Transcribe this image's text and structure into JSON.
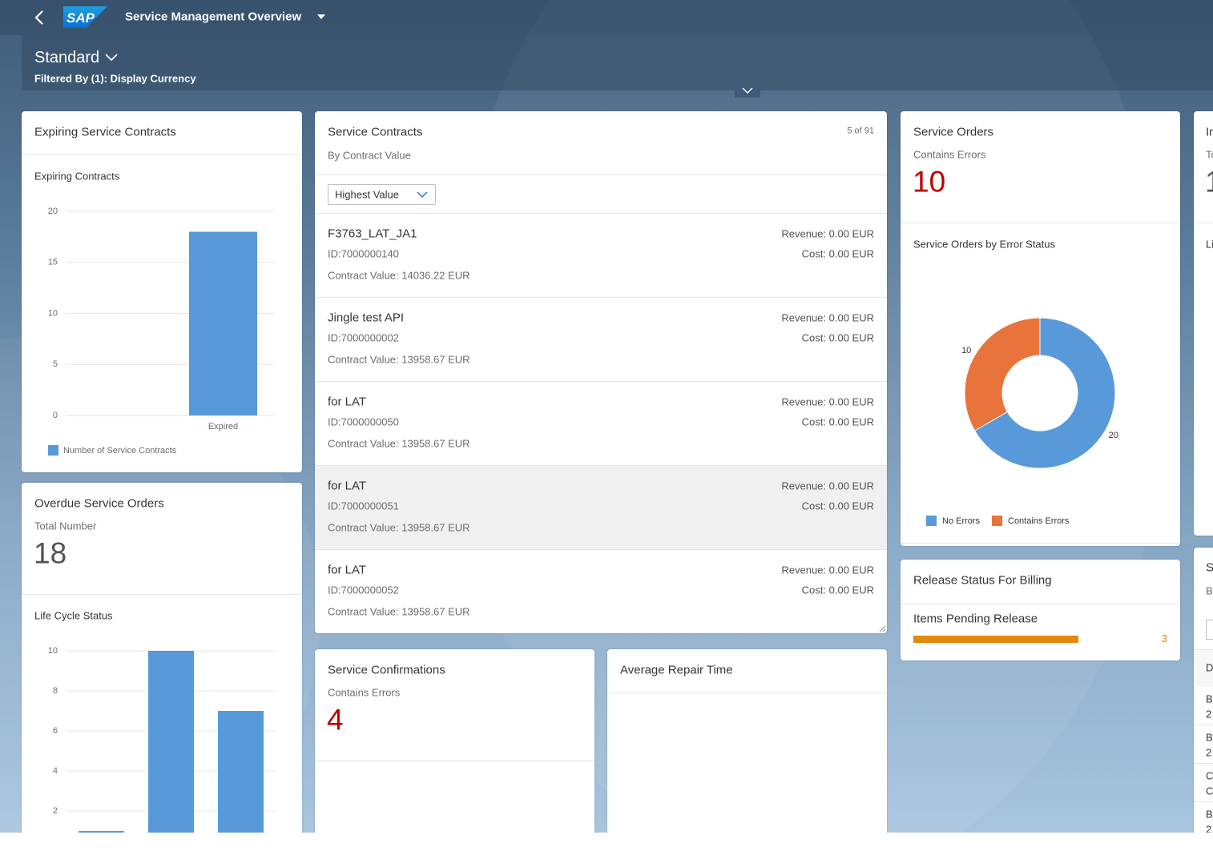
{
  "header": {
    "logo": "SAP",
    "title": "Service Management Overview",
    "variant": "Standard",
    "filter": "Filtered By (1): Display Currency"
  },
  "cards": {
    "expiring": {
      "title": "Expiring Service Contracts"
    },
    "overdue": {
      "title": "Overdue Service Orders",
      "kpi_label": "Total Number",
      "kpi_value": 18
    },
    "contracts": {
      "title": "Service Contracts",
      "subtitle": "By Contract Value",
      "count": "5 of 91",
      "sort": "Highest Value",
      "rows": [
        {
          "name": "F3763_LAT_JA1",
          "id": "ID:7000000140",
          "value": "Contract Value: 14036.22 EUR",
          "revenue": "Revenue: 0.00 EUR",
          "cost": "Cost: 0.00 EUR"
        },
        {
          "name": "Jingle test API",
          "id": "ID:7000000002",
          "value": "Contract Value: 13958.67 EUR",
          "revenue": "Revenue: 0.00 EUR",
          "cost": "Cost: 0.00 EUR"
        },
        {
          "name": "for LAT",
          "id": "ID:7000000050",
          "value": "Contract Value: 13958.67 EUR",
          "revenue": "Revenue: 0.00 EUR",
          "cost": "Cost: 0.00 EUR"
        },
        {
          "name": "for LAT",
          "id": "ID:7000000051",
          "value": "Contract Value: 13958.67 EUR",
          "revenue": "Revenue: 0.00 EUR",
          "cost": "Cost: 0.00 EUR"
        },
        {
          "name": "for LAT",
          "id": "ID:7000000052",
          "value": "Contract Value: 13958.67 EUR",
          "revenue": "Revenue: 0.00 EUR",
          "cost": "Cost: 0.00 EUR"
        }
      ]
    },
    "confirmations": {
      "title": "Service Confirmations",
      "kpi_label": "Contains Errors",
      "kpi_value": 4
    },
    "repair": {
      "title": "Average Repair Time"
    },
    "orders": {
      "title": "Service Orders",
      "kpi_label": "Contains Errors",
      "kpi_value": 10
    },
    "billing": {
      "title": "Release Status For Billing"
    },
    "partial_a": {
      "title": "In",
      "subtitle": "To",
      "value": "1",
      "chart_title": "Li"
    },
    "partial_b": {
      "title": "S",
      "subtitle": "B",
      "header": "D",
      "rows": [
        [
          "B",
          "2"
        ],
        [
          "B",
          "2"
        ],
        [
          "C",
          "C"
        ],
        [
          "B",
          "2"
        ]
      ]
    }
  },
  "chart_data": [
    {
      "type": "bar",
      "title": "Expiring Contracts",
      "categories": [
        "Expired"
      ],
      "series": [
        {
          "name": "Number of Service Contracts",
          "color": "#5899da",
          "values": [
            18
          ]
        }
      ],
      "ylim": [
        0,
        20
      ],
      "yticks": [
        0,
        5,
        10,
        15,
        20
      ],
      "grid": true
    },
    {
      "type": "donut",
      "title": "Service Orders by Error Status",
      "categories": [
        "No Errors",
        "Contains Errors"
      ],
      "values": [
        20,
        10
      ],
      "colors": [
        "#5899da",
        "#e8743b"
      ]
    },
    {
      "type": "bar",
      "title": "Life Cycle Status",
      "categories": [
        null,
        null,
        null
      ],
      "series": [
        {
          "color": "#5899da",
          "values": [
            1,
            10,
            7
          ]
        }
      ],
      "ylim": [
        0,
        10
      ],
      "yticks": [
        2,
        4,
        6,
        8,
        10
      ],
      "grid": true
    },
    {
      "type": "hbar",
      "title": "Items Pending Release",
      "values": [
        3
      ],
      "color": "#e3890c"
    }
  ]
}
